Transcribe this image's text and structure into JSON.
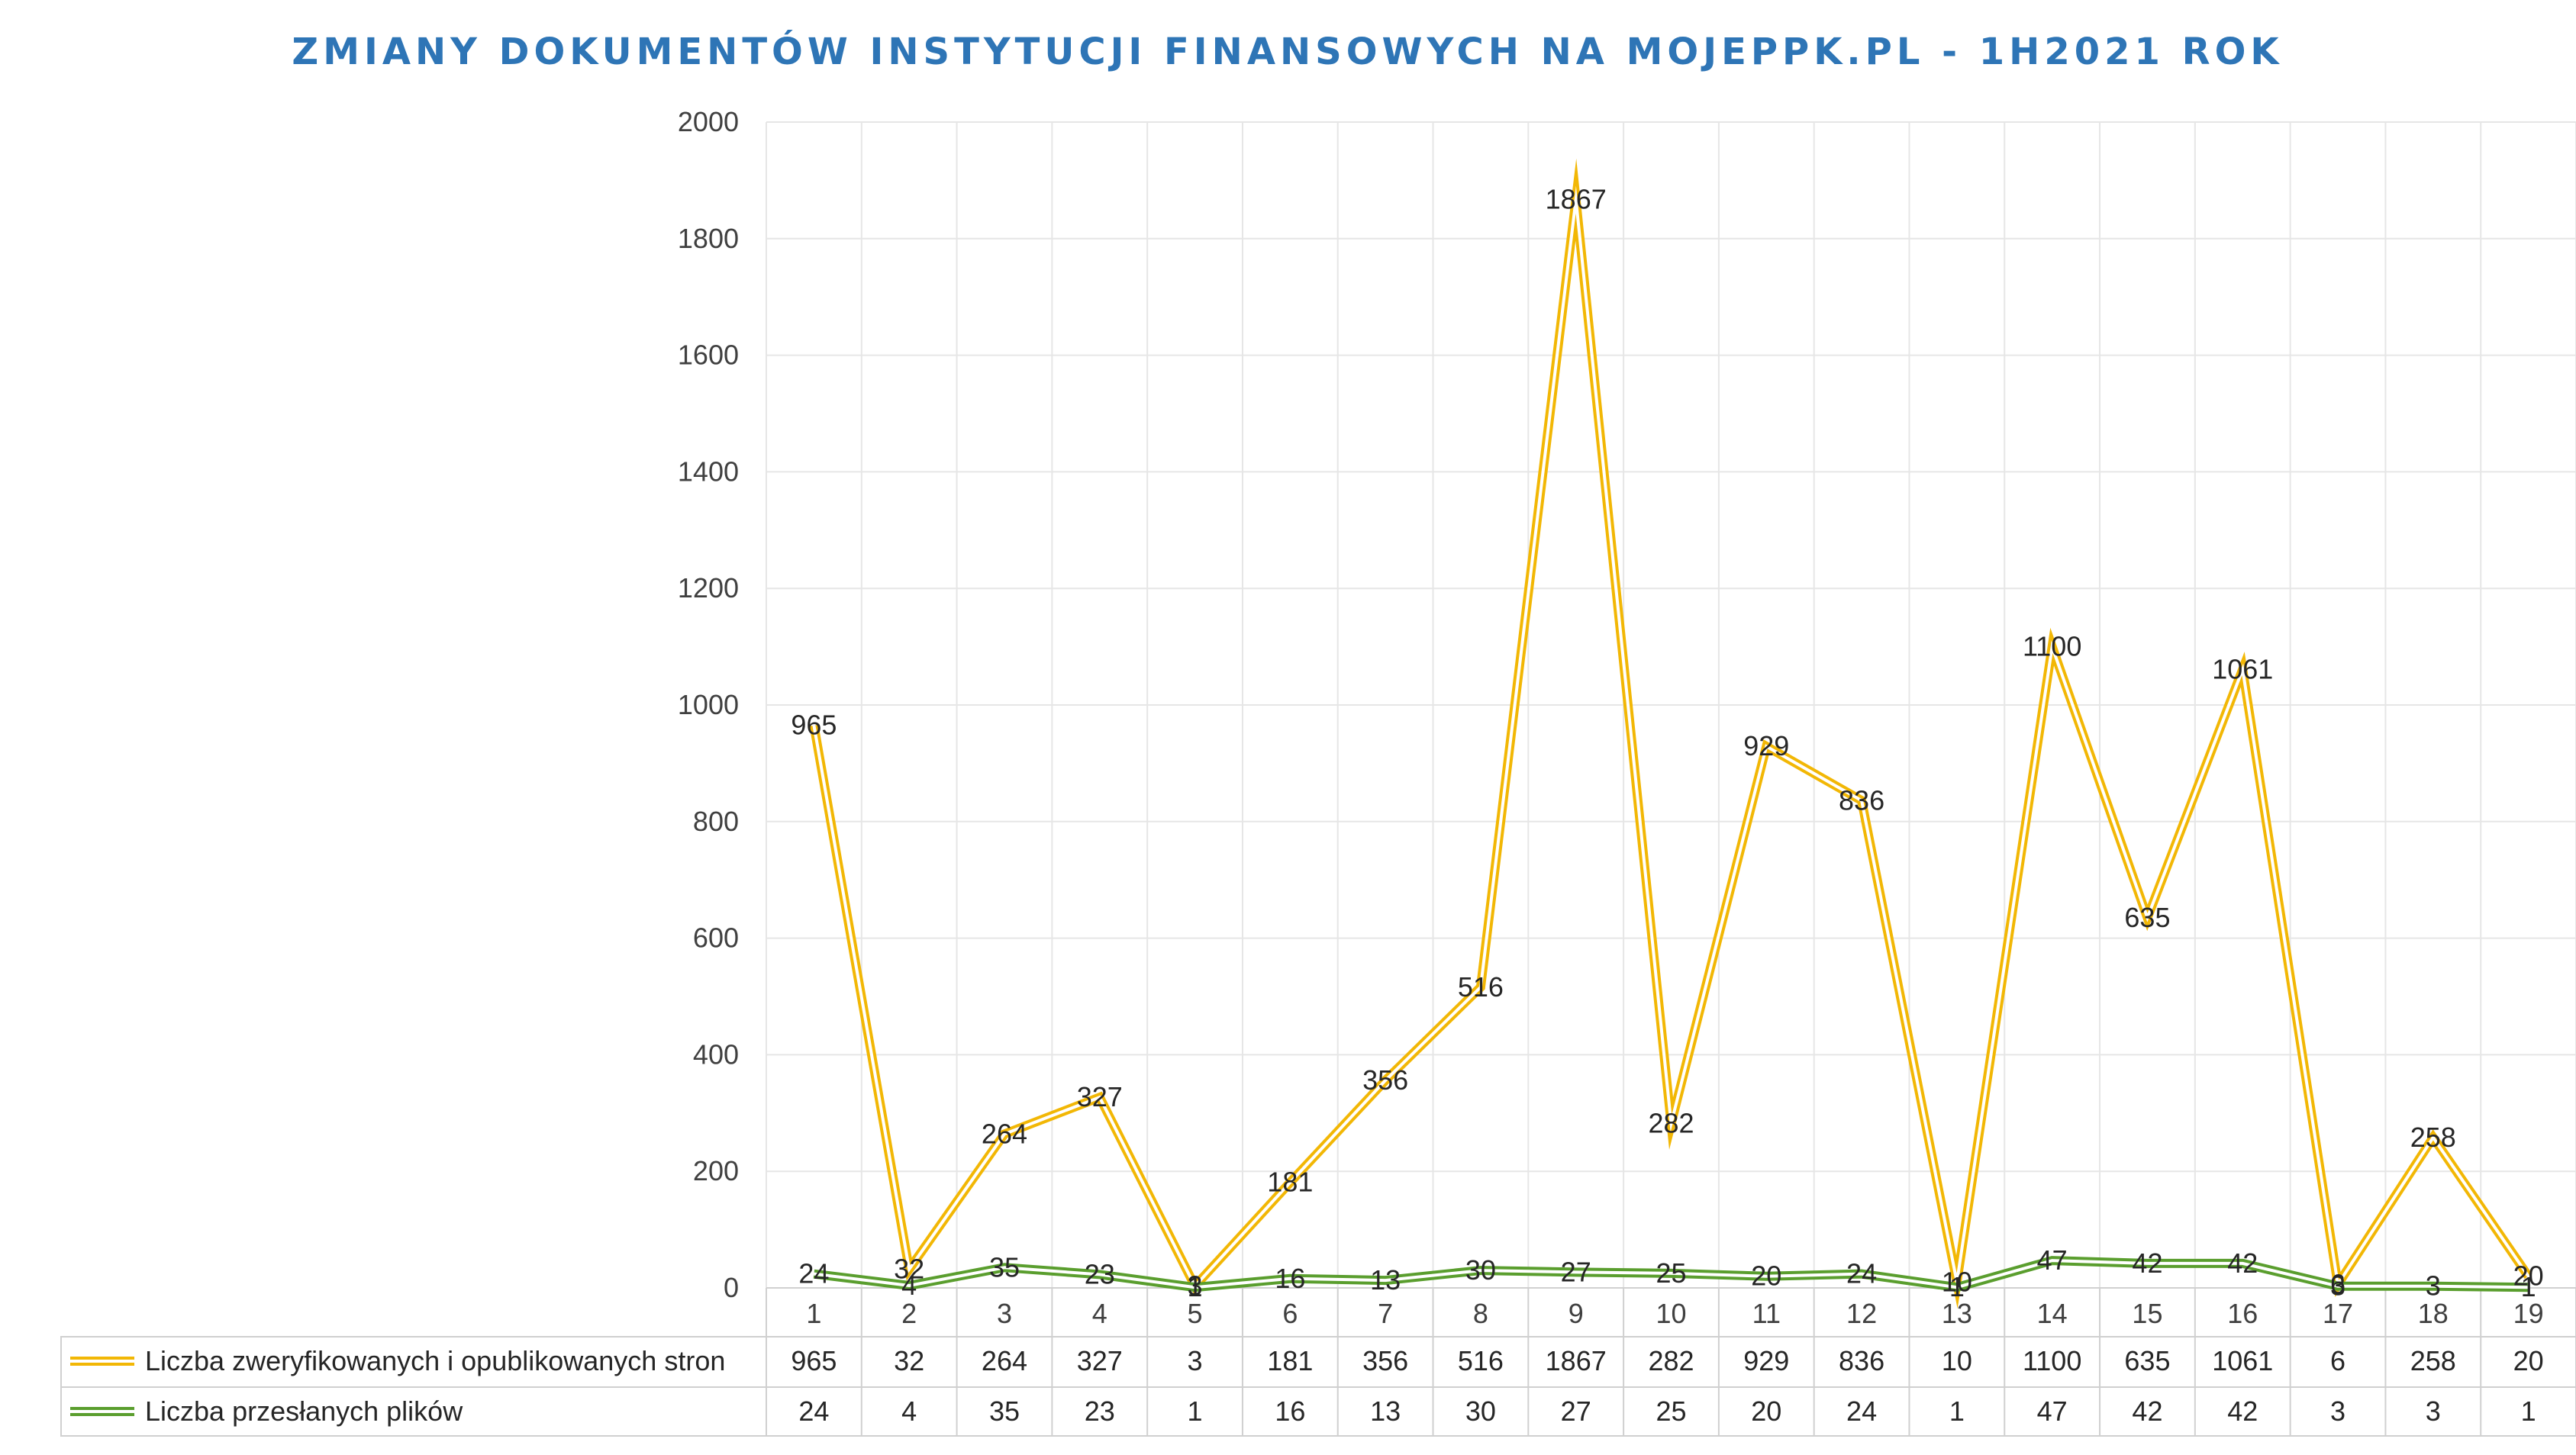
{
  "chart_data": {
    "type": "line",
    "title": "ZMIANY DOKUMENTÓW INSTYTUCJI FINANSOWYCH NA MOJEPPK.PL - 1H2021 ROK",
    "categories": [
      "1",
      "2",
      "3",
      "4",
      "5",
      "6",
      "7",
      "8",
      "9",
      "10",
      "11",
      "12",
      "13",
      "14",
      "15",
      "16",
      "17",
      "18",
      "19"
    ],
    "ylim": [
      0,
      2000
    ],
    "yticks": [
      "0",
      "200",
      "400",
      "600",
      "800",
      "1000",
      "1200",
      "1400",
      "1600",
      "1800",
      "2000"
    ],
    "grid": true,
    "legend_placement": "data table below plot",
    "series": [
      {
        "name": "Liczba zweryfikowanych i opublikowanych stron",
        "color": "#F2B705",
        "values": [
          965,
          32,
          264,
          327,
          3,
          181,
          356,
          516,
          1867,
          282,
          929,
          836,
          10,
          1100,
          635,
          1061,
          6,
          258,
          20
        ]
      },
      {
        "name": "Liczba przesłanych plików",
        "color": "#5A9E2E",
        "values": [
          24,
          4,
          35,
          23,
          1,
          16,
          13,
          30,
          27,
          25,
          20,
          24,
          1,
          47,
          42,
          42,
          3,
          3,
          1
        ]
      }
    ]
  }
}
